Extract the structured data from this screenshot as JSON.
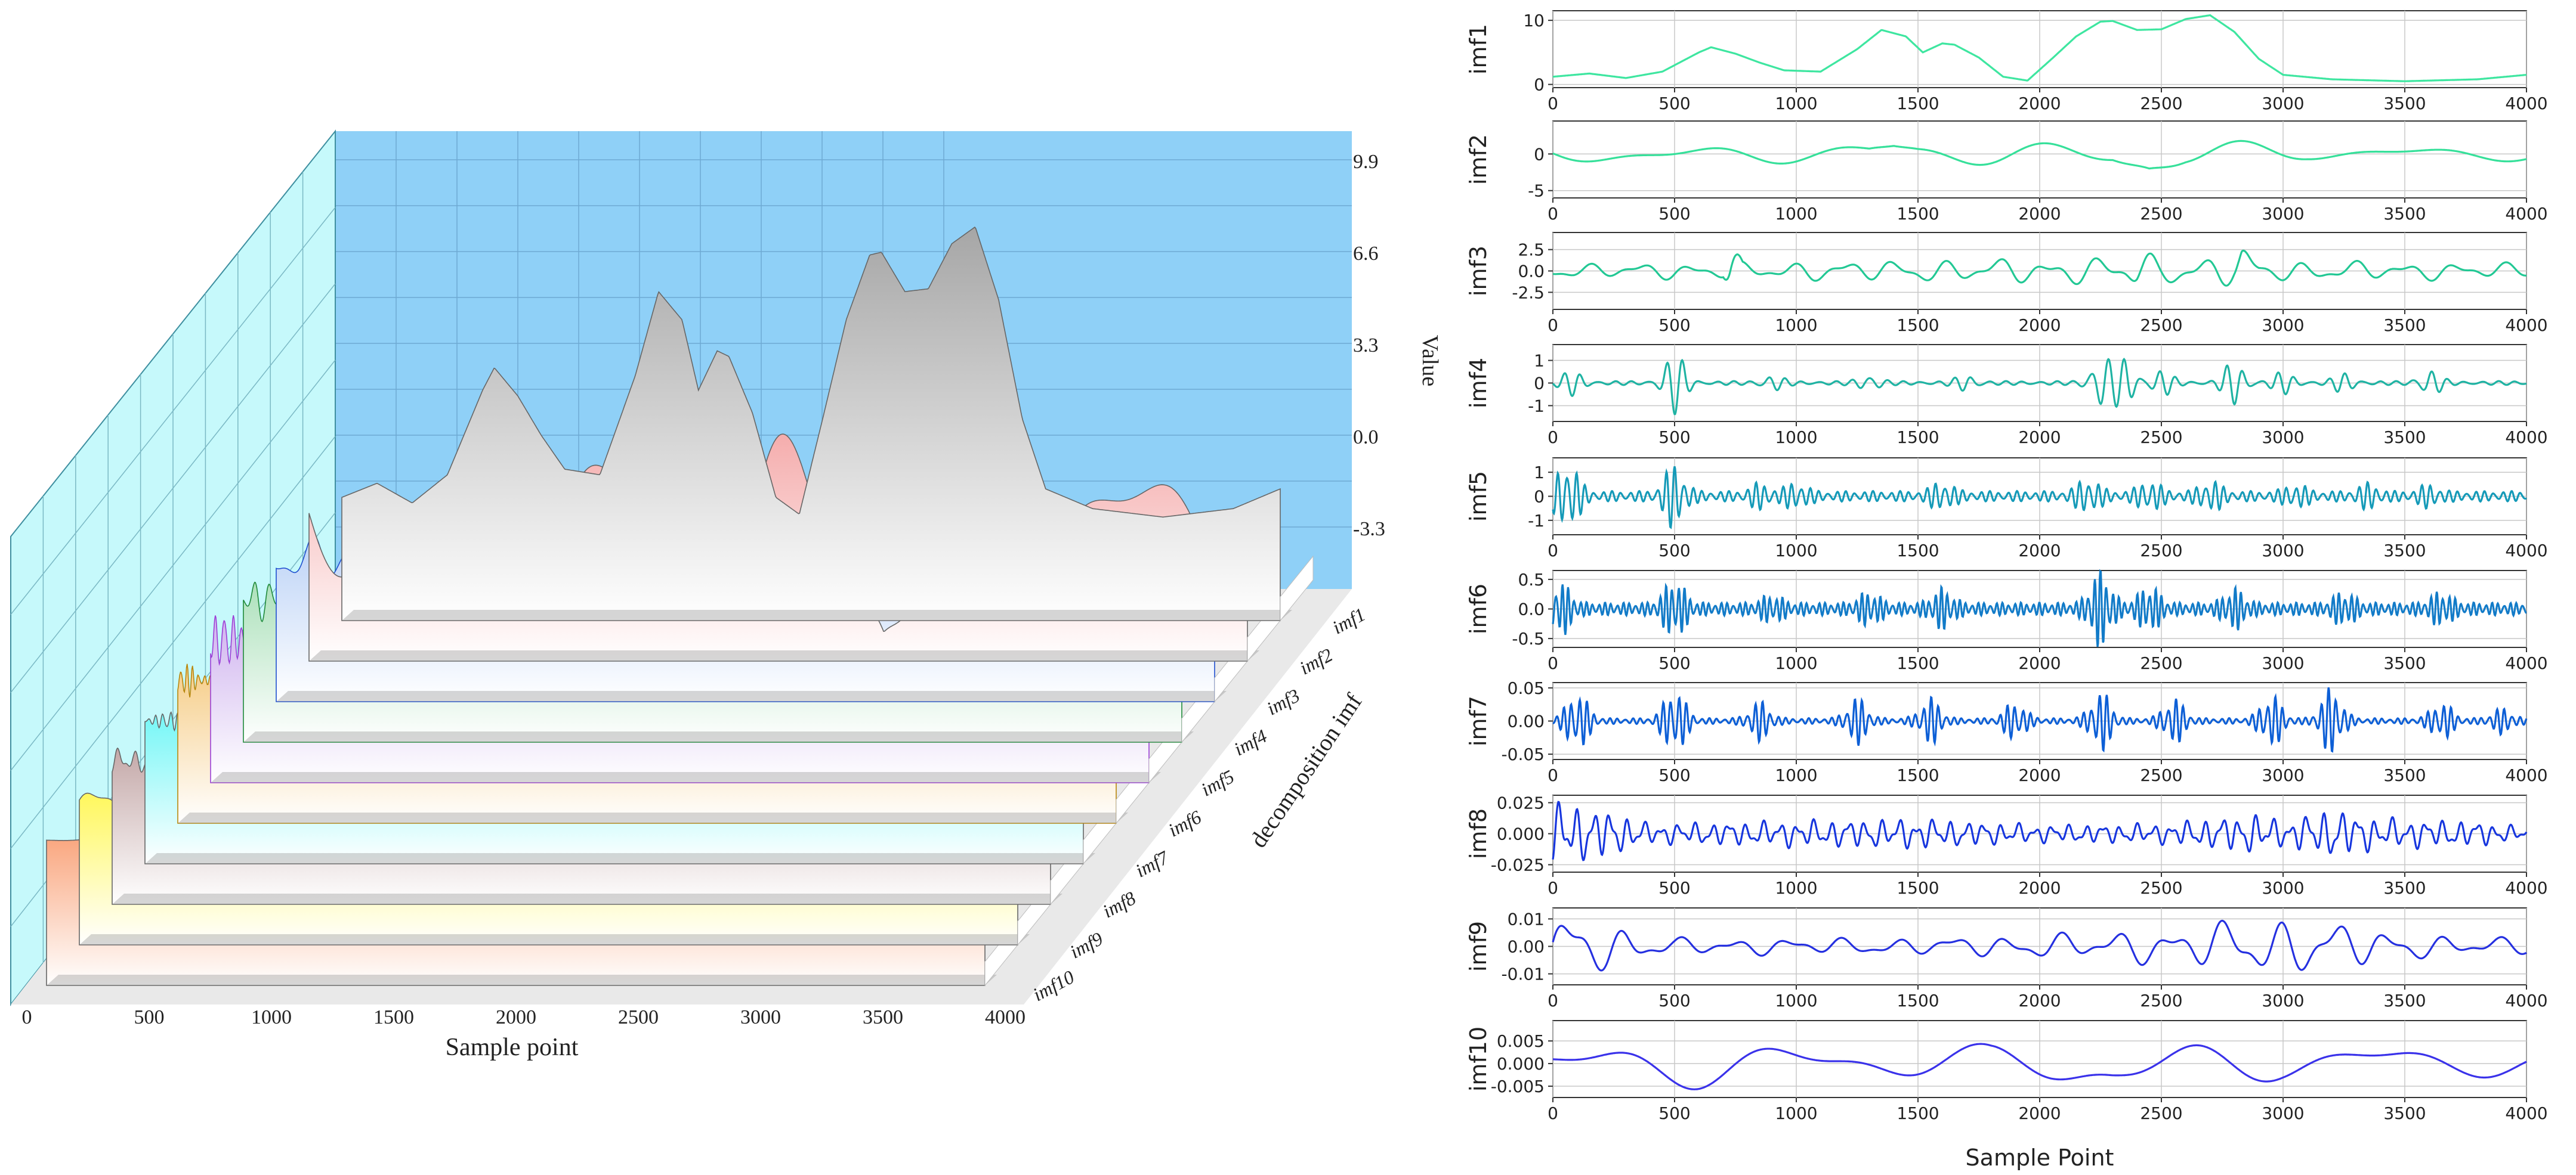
{
  "left_chart": {
    "xlabel": "Sample point",
    "zlabel": "Value",
    "ylabel": "decomposition imf",
    "x_ticks": [
      "0",
      "500",
      "1000",
      "1500",
      "2000",
      "2500",
      "3000",
      "3500",
      "4000"
    ],
    "z_ticks": [
      "9.9",
      "6.6",
      "3.3",
      "0.0",
      "-3.3"
    ],
    "layer_labels": [
      "imf1",
      "imf2",
      "imf3",
      "imf4",
      "imf5",
      "imf6",
      "imf7",
      "imf8",
      "imf9",
      "imf10"
    ]
  },
  "right_chart": {
    "xlabel": "Sample Point",
    "x_ticks": [
      "0",
      "500",
      "1000",
      "1500",
      "2000",
      "2500",
      "3000",
      "3500",
      "4000"
    ]
  },
  "chart_data": [
    {
      "type": "area",
      "title": "",
      "xlabel": "Sample point",
      "ylabel": "Value",
      "xlim": [
        0,
        4000
      ],
      "zlim": [
        -3.3,
        9.9
      ],
      "categories_axis": "decomposition imf",
      "series": [
        {
          "name": "imf1",
          "fill": "#a6a6a6"
        },
        {
          "name": "imf2",
          "fill": "#f4a6a6"
        },
        {
          "name": "imf3",
          "fill": "#a9c6f4"
        },
        {
          "name": "imf4",
          "fill": "#9fdcb0"
        },
        {
          "name": "imf5",
          "fill": "#cdb0ee"
        },
        {
          "name": "imf6",
          "fill": "#f5c97e"
        },
        {
          "name": "imf7",
          "fill": "#6ff6f6"
        },
        {
          "name": "imf8",
          "fill": "#c4a8a8"
        },
        {
          "name": "imf9",
          "fill": "#fff75a"
        },
        {
          "name": "imf10",
          "fill": "#f9a37a"
        }
      ]
    },
    {
      "type": "line",
      "xlabel": "Sample Point",
      "xlim": [
        0,
        4000
      ],
      "grid": true,
      "series": [
        {
          "name": "imf1",
          "color": "#3ee6a0",
          "ylim": [
            -0.5,
            11.5
          ],
          "yticks": [
            "0",
            "10"
          ],
          "shape": [
            [
              0,
              1.2
            ],
            [
              150,
              1.7
            ],
            [
              300,
              1
            ],
            [
              450,
              2
            ],
            [
              600,
              5
            ],
            [
              650,
              5.8
            ],
            [
              750,
              4.8
            ],
            [
              850,
              3.4
            ],
            [
              950,
              2.2
            ],
            [
              1100,
              2
            ],
            [
              1250,
              5.5
            ],
            [
              1350,
              8.5
            ],
            [
              1450,
              7.5
            ],
            [
              1520,
              5
            ],
            [
              1600,
              6.4
            ],
            [
              1650,
              6.2
            ],
            [
              1750,
              4.2
            ],
            [
              1850,
              1.2
            ],
            [
              1950,
              0.6
            ],
            [
              2050,
              4
            ],
            [
              2150,
              7.5
            ],
            [
              2250,
              9.8
            ],
            [
              2300,
              9.9
            ],
            [
              2400,
              8.5
            ],
            [
              2500,
              8.6
            ],
            [
              2600,
              10.2
            ],
            [
              2700,
              10.8
            ],
            [
              2800,
              8.2
            ],
            [
              2900,
              4
            ],
            [
              3000,
              1.5
            ],
            [
              3200,
              0.8
            ],
            [
              3500,
              0.5
            ],
            [
              3800,
              0.8
            ],
            [
              4000,
              1.5
            ]
          ]
        },
        {
          "name": "imf2",
          "color": "#36e09a",
          "ylim": [
            -6,
            4.5
          ],
          "yticks": [
            "0",
            "-5"
          ],
          "kind": "osc",
          "freq": 0.0085,
          "env": [
            [
              0,
              1.3
            ],
            [
              1300,
              1.3
            ],
            [
              1400,
              3
            ],
            [
              1500,
              2
            ],
            [
              2300,
              1.5
            ],
            [
              2450,
              4.5
            ],
            [
              2600,
              2.5
            ],
            [
              3100,
              1
            ],
            [
              4000,
              0.9
            ]
          ]
        },
        {
          "name": "imf3",
          "color": "#22c894",
          "ylim": [
            -4.5,
            4.5
          ],
          "yticks": [
            "2.5",
            "0.0",
            "-2.5"
          ],
          "kind": "osc",
          "freq": 0.03,
          "env": [
            [
              0,
              0.8
            ],
            [
              700,
              1
            ],
            [
              730,
              3.3
            ],
            [
              780,
              1
            ],
            [
              2350,
              1.6
            ],
            [
              2400,
              3
            ],
            [
              2500,
              1.4
            ],
            [
              2800,
              2
            ],
            [
              2830,
              3.5
            ],
            [
              2900,
              1.2
            ],
            [
              4000,
              0.9
            ]
          ]
        },
        {
          "name": "imf4",
          "color": "#1fb3a3",
          "ylim": [
            -1.7,
            1.7
          ],
          "yticks": [
            "1",
            "0",
            "-1"
          ],
          "kind": "burst",
          "freq": 0.09,
          "base": 0.08,
          "env": [
            [
              80,
              0.45
            ],
            [
              500,
              1.2
            ],
            [
              900,
              0.3
            ],
            [
              1300,
              0.35
            ],
            [
              1700,
              0.3
            ],
            [
              2250,
              1.1
            ],
            [
              2350,
              0.9
            ],
            [
              2500,
              0.5
            ],
            [
              2800,
              0.85
            ],
            [
              3000,
              0.4
            ],
            [
              3250,
              0.35
            ],
            [
              3600,
              0.55
            ]
          ]
        },
        {
          "name": "imf5",
          "color": "#159ab8",
          "ylim": [
            -1.6,
            1.6
          ],
          "yticks": [
            "1",
            "0",
            "-1"
          ],
          "kind": "burst",
          "freq": 0.17,
          "base": 0.2,
          "env": [
            [
              60,
              1.3
            ],
            [
              500,
              1.1
            ],
            [
              850,
              0.35
            ],
            [
              1000,
              0.4
            ],
            [
              1600,
              0.45
            ],
            [
              2200,
              0.6
            ],
            [
              2450,
              0.5
            ],
            [
              2700,
              0.5
            ],
            [
              3050,
              0.35
            ],
            [
              3350,
              0.35
            ],
            [
              3600,
              0.3
            ]
          ]
        },
        {
          "name": "imf6",
          "color": "#127bc8",
          "ylim": [
            -0.65,
            0.65
          ],
          "yticks": [
            "0.5",
            "0.0",
            "-0.5"
          ],
          "kind": "burst",
          "freq": 0.25,
          "base": 0.1,
          "env": [
            [
              30,
              0.35
            ],
            [
              500,
              0.4
            ],
            [
              900,
              0.15
            ],
            [
              1300,
              0.2
            ],
            [
              1600,
              0.25
            ],
            [
              2250,
              0.55
            ],
            [
              2450,
              0.3
            ],
            [
              2800,
              0.25
            ],
            [
              3250,
              0.2
            ],
            [
              3650,
              0.2
            ]
          ]
        },
        {
          "name": "imf7",
          "color": "#0d5fd6",
          "ylim": [
            -0.058,
            0.058
          ],
          "yticks": [
            "0.05",
            "0.00",
            "-0.05"
          ],
          "kind": "burst",
          "freq": 0.2,
          "base": 0.004,
          "env": [
            [
              100,
              0.04
            ],
            [
              500,
              0.045
            ],
            [
              850,
              0.025
            ],
            [
              1250,
              0.03
            ],
            [
              1550,
              0.03
            ],
            [
              1900,
              0.025
            ],
            [
              2250,
              0.04
            ],
            [
              2550,
              0.03
            ],
            [
              2950,
              0.035
            ],
            [
              3200,
              0.045
            ],
            [
              3650,
              0.025
            ],
            [
              3900,
              0.015
            ]
          ]
        },
        {
          "name": "imf8",
          "color": "#1736de",
          "ylim": [
            -0.031,
            0.031
          ],
          "yticks": [
            "0.025",
            "0.000",
            "-0.025"
          ],
          "kind": "osc",
          "freq": 0.09,
          "env": [
            [
              0,
              0.025
            ],
            [
              200,
              0.02
            ],
            [
              400,
              0.008
            ],
            [
              900,
              0.01
            ],
            [
              1500,
              0.012
            ],
            [
              2000,
              0.007
            ],
            [
              2500,
              0.008
            ],
            [
              2900,
              0.016
            ],
            [
              3000,
              0.01
            ],
            [
              3200,
              0.02
            ],
            [
              3400,
              0.012
            ],
            [
              3800,
              0.01
            ],
            [
              4000,
              0.005
            ]
          ]
        },
        {
          "name": "imf9",
          "color": "#2530e0",
          "ylim": [
            -0.014,
            0.014
          ],
          "yticks": [
            "0.01",
            "0.00",
            "-0.01"
          ],
          "kind": "osc",
          "freq": 0.028,
          "env": [
            [
              0,
              0.012
            ],
            [
              300,
              0.007
            ],
            [
              500,
              0.003
            ],
            [
              1500,
              0.003
            ],
            [
              2200,
              0.005
            ],
            [
              2600,
              0.007
            ],
            [
              2900,
              0.011
            ],
            [
              3200,
              0.009
            ],
            [
              3600,
              0.004
            ],
            [
              4000,
              0.003
            ]
          ]
        },
        {
          "name": "imf10",
          "color": "#3a32ea",
          "ylim": [
            -0.0075,
            0.0095
          ],
          "yticks": [
            "0.005",
            "0.000",
            "-0.005"
          ],
          "kind": "osc",
          "freq": 0.0078,
          "env": [
            [
              0,
              0.005
            ],
            [
              600,
              0.005
            ],
            [
              1800,
              0.004
            ],
            [
              2300,
              0.007
            ],
            [
              2450,
              0.006
            ],
            [
              3000,
              0.004
            ],
            [
              3500,
              0.004
            ],
            [
              4000,
              0.003
            ]
          ]
        }
      ]
    }
  ]
}
